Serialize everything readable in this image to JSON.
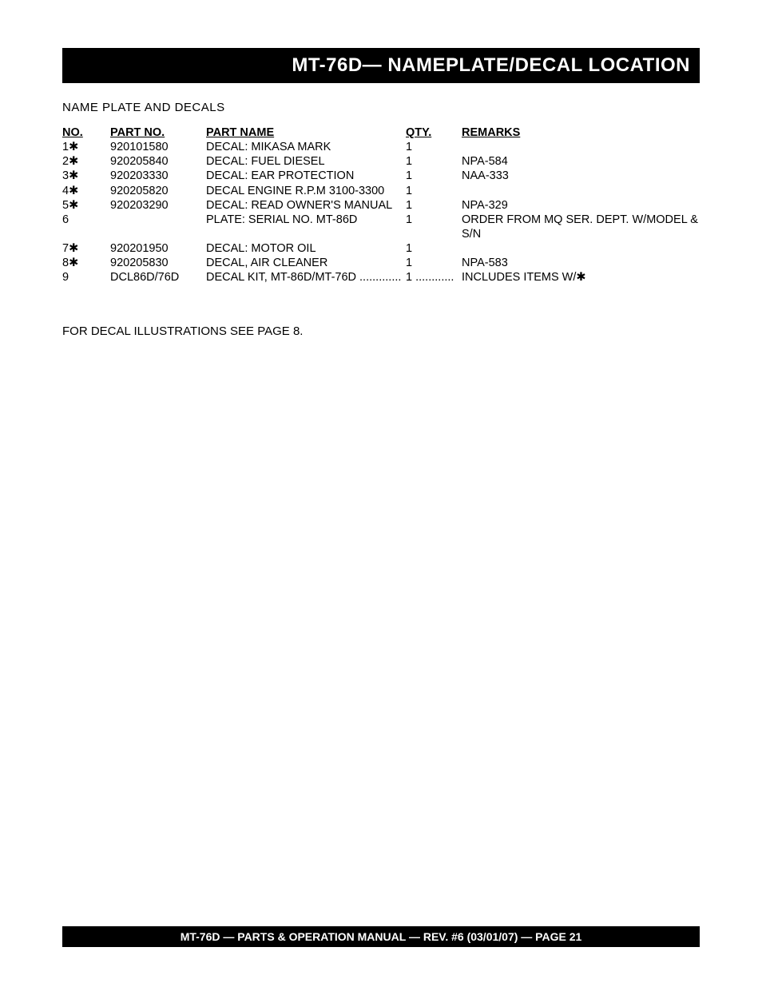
{
  "header": {
    "title": "MT-76D— NAMEPLATE/DECAL LOCATION"
  },
  "section_title": "NAME PLATE AND DECALS",
  "table": {
    "headers": {
      "no": "NO.",
      "part_no": "PART NO.",
      "part_name": "PART NAME",
      "qty": "QTY.",
      "remarks": "REMARKS"
    },
    "rows": [
      {
        "no": "1✱",
        "part_no": "920101580",
        "part_name": "DECAL: MIKASA MARK",
        "qty": "1",
        "remarks": ""
      },
      {
        "no": "2✱",
        "part_no": "920205840",
        "part_name": "DECAL: FUEL DIESEL",
        "qty": "1",
        "remarks": "NPA-584"
      },
      {
        "no": "3✱",
        "part_no": "920203330",
        "part_name": "DECAL: EAR PROTECTION",
        "qty": "1",
        "remarks": "NAA-333"
      },
      {
        "no": "4✱",
        "part_no": "920205820",
        "part_name": "DECAL ENGINE R.P.M 3100-3300",
        "qty": "1",
        "remarks": ""
      },
      {
        "no": "5✱",
        "part_no": "920203290",
        "part_name": "DECAL: READ OWNER'S MANUAL",
        "qty": "1",
        "remarks": "NPA-329"
      },
      {
        "no": "6",
        "part_no": "",
        "part_name": "PLATE:  SERIAL NO. MT-86D",
        "qty": "1",
        "remarks": "ORDER FROM MQ SER. DEPT. W/MODEL & S/N"
      },
      {
        "no": "7✱",
        "part_no": "920201950",
        "part_name": "DECAL: MOTOR OIL",
        "qty": "1",
        "remarks": ""
      },
      {
        "no": "8✱",
        "part_no": "920205830",
        "part_name": "DECAL, AIR CLEANER",
        "qty": "1",
        "remarks": "NPA-583"
      },
      {
        "no": "9",
        "part_no": "DCL86D/76D",
        "part_name": "DECAL KIT, MT-86D/MT-76D .............",
        "qty": "1 ............",
        "remarks": "INCLUDES ITEMS W/✱",
        "dotted": true
      }
    ]
  },
  "footer_note": "FOR DECAL ILLUSTRATIONS SEE PAGE 8.",
  "footer_bar": "MT-76D — PARTS & OPERATION MANUAL — REV. #6 (03/01/07) — PAGE 21"
}
